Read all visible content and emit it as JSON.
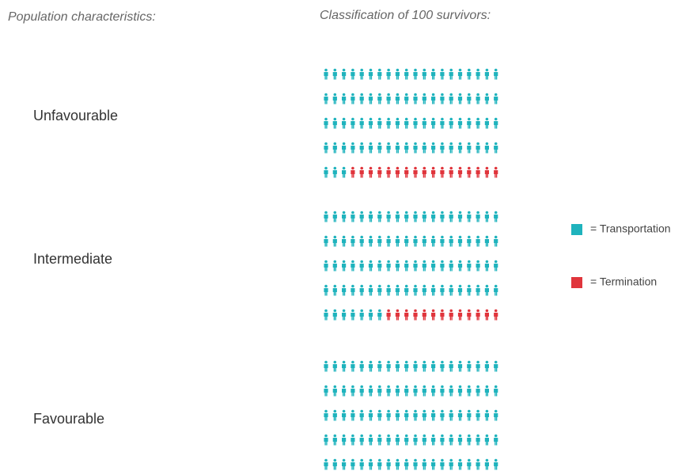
{
  "chart_data": {
    "type": "waffle",
    "subtitle": "Population characteristics:",
    "title": "Classification of 100 survivors:",
    "categories": [
      "Unfavourable",
      "Intermediate",
      "Favourable"
    ],
    "series": [
      {
        "name": "= Transportation",
        "color": "#1fb3bd",
        "values": [
          83,
          87,
          100
        ]
      },
      {
        "name": "= Termination",
        "color": "#e0353c",
        "values": [
          17,
          13,
          0
        ]
      }
    ]
  }
}
